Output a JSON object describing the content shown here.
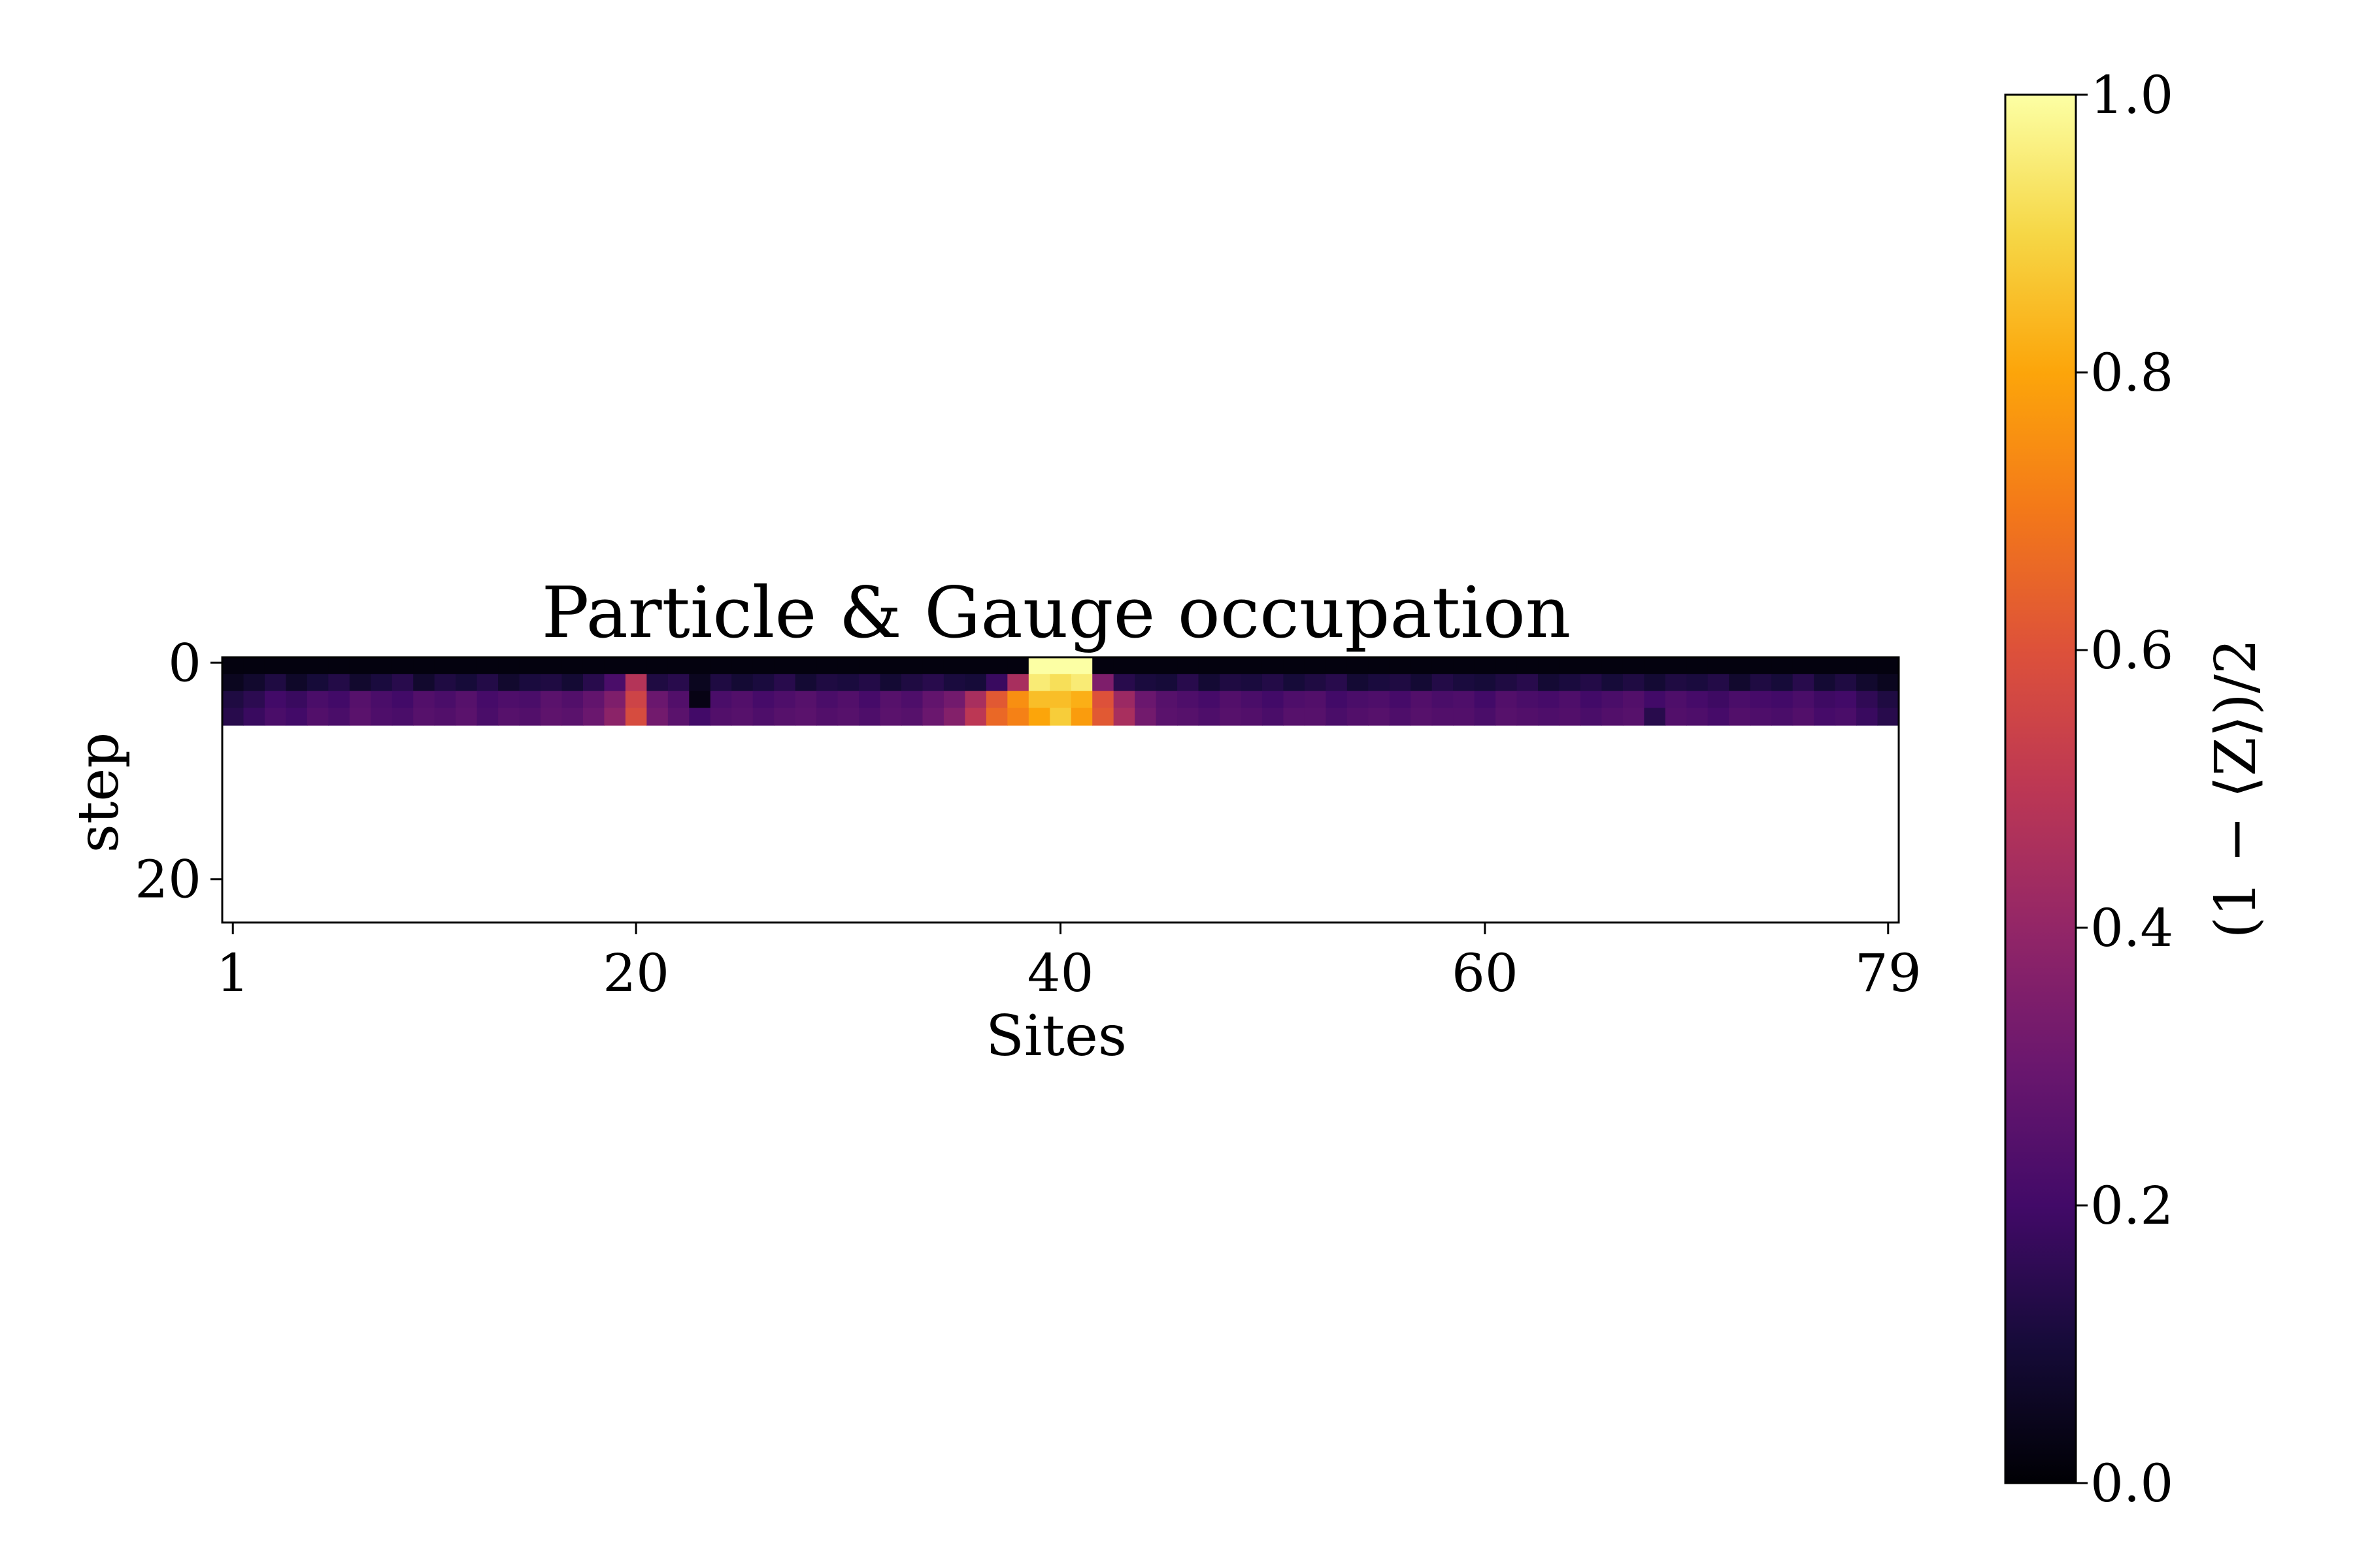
{
  "chart_data": {
    "type": "heatmap",
    "title": "Particle & Gauge occupation",
    "xlabel": "Sites",
    "ylabel": "step",
    "x_ticks": [
      1,
      20,
      40,
      60,
      79
    ],
    "x_tick_labels": [
      "1",
      "20",
      "40",
      "60",
      "79"
    ],
    "y_ticks": [
      0,
      20
    ],
    "y_tick_labels": [
      "0",
      "20"
    ],
    "xlim": [
      1,
      79
    ],
    "ylim": [
      0,
      24
    ],
    "grid": false,
    "colorbar": {
      "label": "(1 − ⟨Z⟩)/2",
      "colormap": "inferno",
      "range": [
        0.0,
        1.0
      ],
      "ticks": [
        0.0,
        0.2,
        0.4,
        0.6,
        0.8,
        1.0
      ],
      "tick_labels": [
        "0.0",
        "0.2",
        "0.4",
        "0.6",
        "0.8",
        "1.0"
      ]
    },
    "rows": [
      [
        0.02,
        0.02,
        0.02,
        0.02,
        0.02,
        0.02,
        0.02,
        0.02,
        0.02,
        0.02,
        0.02,
        0.02,
        0.02,
        0.02,
        0.02,
        0.02,
        0.02,
        0.02,
        0.02,
        0.02,
        0.02,
        0.02,
        0.02,
        0.02,
        0.02,
        0.02,
        0.02,
        0.02,
        0.02,
        0.02,
        0.02,
        0.02,
        0.02,
        0.02,
        0.02,
        0.02,
        0.02,
        0.02,
        1.0,
        1.0,
        1.0,
        0.02,
        0.02,
        0.02,
        0.02,
        0.02,
        0.02,
        0.02,
        0.02,
        0.02,
        0.02,
        0.02,
        0.02,
        0.02,
        0.02,
        0.02,
        0.02,
        0.02,
        0.02,
        0.02,
        0.02,
        0.02,
        0.02,
        0.02,
        0.02,
        0.02,
        0.02,
        0.02,
        0.02,
        0.02,
        0.02,
        0.02,
        0.02,
        0.02,
        0.02,
        0.02,
        0.02,
        0.02,
        0.02
      ],
      [
        0.05,
        0.08,
        0.12,
        0.07,
        0.1,
        0.13,
        0.08,
        0.11,
        0.14,
        0.08,
        0.12,
        0.1,
        0.13,
        0.08,
        0.11,
        0.12,
        0.09,
        0.14,
        0.22,
        0.48,
        0.12,
        0.14,
        0.05,
        0.12,
        0.09,
        0.11,
        0.14,
        0.09,
        0.12,
        0.11,
        0.13,
        0.09,
        0.12,
        0.14,
        0.11,
        0.1,
        0.18,
        0.45,
        0.95,
        0.92,
        0.95,
        0.35,
        0.14,
        0.11,
        0.1,
        0.14,
        0.09,
        0.12,
        0.11,
        0.13,
        0.1,
        0.12,
        0.14,
        0.09,
        0.11,
        0.12,
        0.09,
        0.13,
        0.11,
        0.1,
        0.12,
        0.14,
        0.09,
        0.11,
        0.13,
        0.1,
        0.12,
        0.09,
        0.12,
        0.11,
        0.13,
        0.08,
        0.12,
        0.1,
        0.14,
        0.09,
        0.12,
        0.08,
        0.05
      ],
      [
        0.12,
        0.15,
        0.2,
        0.18,
        0.22,
        0.2,
        0.25,
        0.22,
        0.2,
        0.24,
        0.22,
        0.25,
        0.21,
        0.23,
        0.22,
        0.26,
        0.24,
        0.28,
        0.35,
        0.55,
        0.3,
        0.24,
        0.03,
        0.22,
        0.24,
        0.21,
        0.23,
        0.25,
        0.22,
        0.24,
        0.21,
        0.25,
        0.23,
        0.28,
        0.32,
        0.45,
        0.62,
        0.75,
        0.85,
        0.85,
        0.82,
        0.6,
        0.42,
        0.3,
        0.25,
        0.23,
        0.21,
        0.24,
        0.22,
        0.2,
        0.23,
        0.24,
        0.2,
        0.22,
        0.23,
        0.21,
        0.24,
        0.22,
        0.23,
        0.2,
        0.24,
        0.22,
        0.21,
        0.23,
        0.2,
        0.22,
        0.24,
        0.2,
        0.23,
        0.21,
        0.19,
        0.22,
        0.21,
        0.2,
        0.22,
        0.19,
        0.2,
        0.16,
        0.12
      ],
      [
        0.14,
        0.18,
        0.22,
        0.2,
        0.24,
        0.22,
        0.26,
        0.23,
        0.22,
        0.25,
        0.24,
        0.26,
        0.22,
        0.25,
        0.24,
        0.27,
        0.26,
        0.3,
        0.38,
        0.58,
        0.32,
        0.26,
        0.2,
        0.24,
        0.25,
        0.23,
        0.25,
        0.26,
        0.24,
        0.25,
        0.23,
        0.26,
        0.25,
        0.3,
        0.36,
        0.5,
        0.66,
        0.72,
        0.8,
        0.88,
        0.78,
        0.62,
        0.45,
        0.32,
        0.26,
        0.25,
        0.23,
        0.25,
        0.24,
        0.22,
        0.25,
        0.25,
        0.22,
        0.24,
        0.25,
        0.23,
        0.25,
        0.24,
        0.24,
        0.22,
        0.25,
        0.24,
        0.23,
        0.24,
        0.22,
        0.24,
        0.25,
        0.14,
        0.24,
        0.23,
        0.21,
        0.24,
        0.23,
        0.22,
        0.24,
        0.21,
        0.22,
        0.18,
        0.14
      ]
    ]
  }
}
